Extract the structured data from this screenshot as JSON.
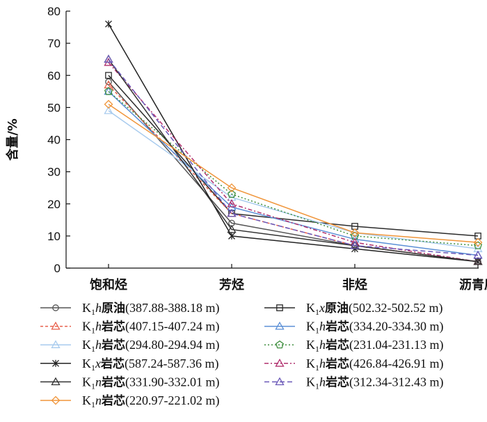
{
  "chart_data": {
    "type": "line",
    "ylabel": "含量/%",
    "ylim": [
      0,
      80
    ],
    "yticks": [
      0,
      10,
      20,
      30,
      40,
      50,
      60,
      70,
      80
    ],
    "categories": [
      "饱和烃",
      "芳烃",
      "非烃",
      "沥青质"
    ],
    "legend_placement": "bottom",
    "series": [
      {
        "name": "K1h原油(387.88-388.18 m)",
        "prefix": "K",
        "sub": "1",
        "italic": "h",
        "cn": "原油",
        "range": "(387.88-388.18 m)",
        "color": "#555555",
        "marker": "circle",
        "dash": "",
        "values": [
          58,
          14,
          7,
          2
        ]
      },
      {
        "name": "K1x原油(502.32-502.52 m)",
        "prefix": "K",
        "sub": "1",
        "italic": "x",
        "cn": "原油",
        "range": "(502.32-502.52 m)",
        "color": "#2b2b2b",
        "marker": "square",
        "dash": "",
        "values": [
          60,
          17,
          13,
          10
        ]
      },
      {
        "name": "K1h岩芯(407.15-407.24 m)",
        "prefix": "K",
        "sub": "1",
        "italic": "h",
        "cn": "岩芯",
        "range": "(407.15-407.24 m)",
        "color": "#e8604c",
        "marker": "triangle",
        "dash": "4,3",
        "values": [
          57,
          17,
          7,
          2
        ]
      },
      {
        "name": "K1h岩芯(334.20-334.30 m)",
        "prefix": "K",
        "sub": "1",
        "italic": "h",
        "cn": "岩芯",
        "range": "(334.20-334.30 m)",
        "color": "#5b8fd6",
        "marker": "triangle",
        "dash": "",
        "values": [
          55,
          19,
          9,
          4
        ]
      },
      {
        "name": "K1h岩芯(294.80-294.94 m)",
        "prefix": "K",
        "sub": "1",
        "italic": "h",
        "cn": "岩芯",
        "range": "(294.80-294.94 m)",
        "color": "#a8cbee",
        "marker": "triangle",
        "dash": "",
        "values": [
          49,
          22,
          11,
          6
        ]
      },
      {
        "name": "K1h岩芯(231.04-231.13 m)",
        "prefix": "K",
        "sub": "1",
        "italic": "h",
        "cn": "岩芯",
        "range": "(231.04-231.13 m)",
        "color": "#3e8e3e",
        "marker": "pentagon",
        "dash": "2,3",
        "values": [
          55,
          23,
          10,
          7
        ]
      },
      {
        "name": "K1x岩芯(587.24-587.36 m)",
        "prefix": "K",
        "sub": "1",
        "italic": "x",
        "cn": "岩芯",
        "range": "(587.24-587.36 m)",
        "color": "#222222",
        "marker": "star",
        "dash": "",
        "values": [
          76,
          10,
          6,
          2
        ]
      },
      {
        "name": "K1h岩芯(426.84-426.91 m)",
        "prefix": "K",
        "sub": "1",
        "italic": "h",
        "cn": "岩芯",
        "range": "(426.84-426.91 m)",
        "color": "#b0306e",
        "marker": "triangle",
        "dash": "6,3,2,3",
        "values": [
          64,
          20,
          8,
          2
        ]
      },
      {
        "name": "K1n岩芯(331.90-332.01 m)",
        "prefix": "K",
        "sub": "1",
        "italic": "n",
        "cn": "岩芯",
        "range": "(331.90-332.01 m)",
        "color": "#333333",
        "marker": "triangle",
        "dash": "",
        "values": [
          65,
          12,
          7,
          2
        ]
      },
      {
        "name": "K1h岩芯(312.34-312.43 m)",
        "prefix": "K",
        "sub": "1",
        "italic": "h",
        "cn": "岩芯",
        "range": "(312.34-312.43 m)",
        "color": "#6a58b8",
        "marker": "triangle",
        "dash": "7,4",
        "values": [
          65,
          17,
          7,
          4
        ]
      },
      {
        "name": "K1n岩芯(220.97-221.02 m)",
        "prefix": "K",
        "sub": "1",
        "italic": "n",
        "cn": "岩芯",
        "range": "(220.97-221.02 m)",
        "color": "#f0953a",
        "marker": "diamond",
        "dash": "",
        "values": [
          51,
          25,
          11,
          8
        ]
      }
    ]
  }
}
